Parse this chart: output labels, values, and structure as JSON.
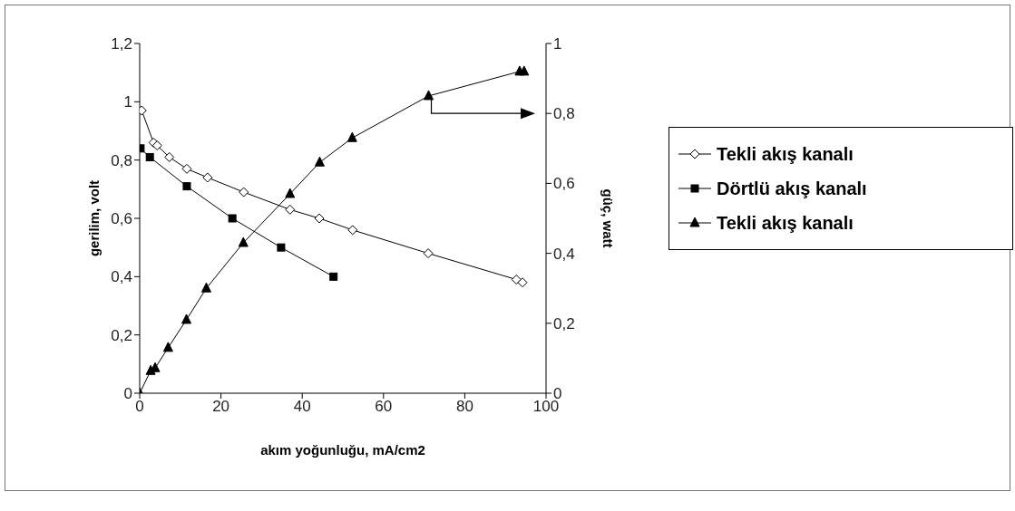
{
  "chart_data": {
    "type": "line",
    "xlabel": "akım yoğunluğu, mA/cm2",
    "ylabel": "gerilim, volt",
    "y2label": "güç, watt",
    "xlim": [
      0,
      100
    ],
    "xticks": [
      0,
      20,
      40,
      60,
      80,
      100
    ],
    "ylim": [
      0,
      1.2
    ],
    "yticks": [
      0,
      {
        "value": 0.2,
        "label": "0,2"
      },
      {
        "value": 0.4,
        "label": "0,4"
      },
      {
        "value": 0.6,
        "label": "0,6"
      },
      {
        "value": 0.8,
        "label": "0,8"
      },
      1,
      {
        "value": 1.2,
        "label": "1,2"
      }
    ],
    "y2lim": [
      0,
      1
    ],
    "y2ticks": [
      0,
      {
        "value": 0.2,
        "label": "0,2"
      },
      {
        "value": 0.4,
        "label": "0,4"
      },
      {
        "value": 0.6,
        "label": "0,6"
      },
      {
        "value": 0.8,
        "label": "0,8"
      },
      1
    ],
    "grid": false,
    "legend": "right",
    "line_style": "solid",
    "series": [
      {
        "name": "Tekli akış kanalı",
        "color": "#000000",
        "marker": "diamond",
        "x": [
          0.5,
          3.4,
          4.3,
          7.3,
          11.6,
          16.7,
          25.6,
          37,
          44.2,
          52.4,
          71,
          92.7,
          94.2
        ],
        "values": [
          0.97,
          0.86,
          0.85,
          0.81,
          0.77,
          0.74,
          0.69,
          0.63,
          0.6,
          0.56,
          0.48,
          0.39,
          0.38
        ]
      },
      {
        "name": "Dörtlü akış kanalı",
        "color": "#000000",
        "marker": "square",
        "x": [
          0.2,
          2.5,
          11.6,
          22.8,
          34.8,
          47.7
        ],
        "values": [
          0.84,
          0.81,
          0.71,
          0.6,
          0.5,
          0.4
        ]
      },
      {
        "name": "Tekli akış kanalı",
        "color": "#000000",
        "marker": "triangle",
        "axis": "y2",
        "x": [
          0,
          2.7,
          3.8,
          7,
          11.5,
          16.4,
          25.5,
          37,
          44.3,
          52.3,
          71.1,
          93.5,
          94.6
        ],
        "values": [
          0,
          0.064,
          0.072,
          0.13,
          0.21,
          0.3,
          0.43,
          0.57,
          0.66,
          0.73,
          0.85,
          0.92,
          0.92
        ]
      }
    ]
  }
}
